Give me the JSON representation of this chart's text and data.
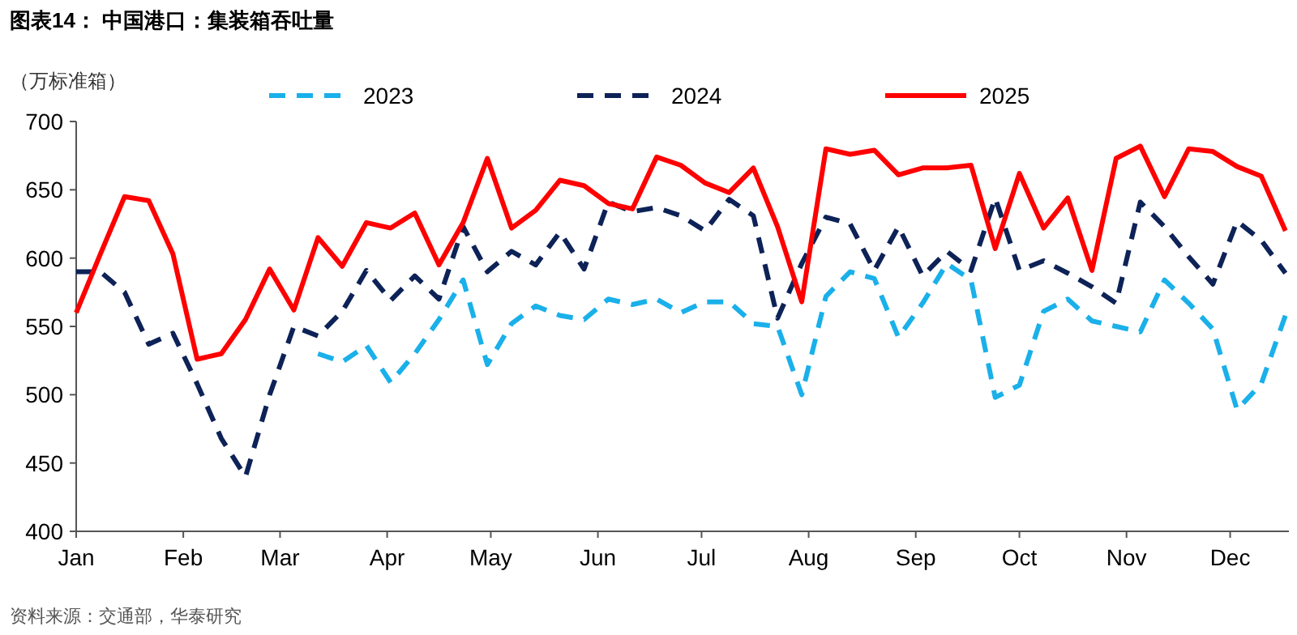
{
  "chart_data": {
    "type": "line",
    "title": "图表14：  中国港口：集装箱吞吐量",
    "ylabel": "（万标准箱）",
    "annotations": [
      "资料来源：交通部，华泰研究"
    ],
    "x": [
      "--01-01",
      "--01-08",
      "--01-15",
      "--01-22",
      "--01-29",
      "--02-05",
      "--02-12",
      "--02-19",
      "--02-26",
      "--03-05",
      "--03-12",
      "--03-19",
      "--03-26",
      "--04-02",
      "--04-09",
      "--04-16",
      "--04-23",
      "--04-30",
      "--05-07",
      "--05-14",
      "--05-21",
      "--05-28",
      "--06-04",
      "--06-11",
      "--06-18",
      "--06-25",
      "--07-02",
      "--07-09",
      "--07-16",
      "--07-23",
      "--07-30",
      "--08-06",
      "--08-13",
      "--08-20",
      "--08-27",
      "--09-03",
      "--09-10",
      "--09-17",
      "--09-24",
      "--10-01",
      "--10-08",
      "--10-15",
      "--10-22",
      "--10-29",
      "--11-05",
      "--11-12",
      "--11-19",
      "--11-26",
      "--12-03",
      "--12-10",
      "--12-17"
    ],
    "xlim": [
      "--01-01",
      "--12-18"
    ],
    "xticks": [
      {
        "value": "--01-01",
        "label": "Jan"
      },
      {
        "value": "--02-01",
        "label": "Feb"
      },
      {
        "value": "--03-01",
        "label": "Mar"
      },
      {
        "value": "--04-01",
        "label": "Apr"
      },
      {
        "value": "--05-01",
        "label": "May"
      },
      {
        "value": "--06-01",
        "label": "Jun"
      },
      {
        "value": "--07-01",
        "label": "Jul"
      },
      {
        "value": "--08-01",
        "label": "Aug"
      },
      {
        "value": "--09-01",
        "label": "Sep"
      },
      {
        "value": "--10-01",
        "label": "Oct"
      },
      {
        "value": "--11-01",
        "label": "Nov"
      },
      {
        "value": "--12-01",
        "label": "Dec"
      }
    ],
    "ylim": [
      400,
      700
    ],
    "yticks": [
      400,
      450,
      500,
      550,
      600,
      650,
      700
    ],
    "grid": false,
    "legend": "top",
    "marker": "none",
    "series": [
      {
        "name": "2023",
        "color": "#1ab0ea",
        "line_style": "dashed",
        "values": [
          null,
          null,
          null,
          null,
          null,
          null,
          null,
          null,
          null,
          null,
          530,
          524,
          536,
          509,
          530,
          555,
          584,
          522,
          552,
          565,
          558,
          555,
          570,
          566,
          570,
          560,
          568,
          568,
          552,
          550,
          500,
          572,
          590,
          585,
          542,
          567,
          596,
          584,
          498,
          507,
          561,
          570,
          554,
          550,
          546,
          584,
          567,
          548,
          489,
          508,
          558
        ]
      },
      {
        "name": "2024",
        "color": "#0d2257",
        "line_style": "dashed",
        "values": [
          590,
          590,
          575,
          537,
          545,
          508,
          468,
          440,
          500,
          550,
          543,
          561,
          591,
          569,
          587,
          570,
          623,
          590,
          605,
          595,
          619,
          592,
          641,
          634,
          637,
          631,
          620,
          643,
          631,
          556,
          596,
          630,
          625,
          591,
          623,
          587,
          605,
          591,
          644,
          591,
          598,
          589,
          579,
          567,
          641,
          623,
          601,
          581,
          627,
          613,
          589
        ]
      },
      {
        "name": "2025",
        "color": "#ff0000",
        "line_style": "solid",
        "values": [
          560,
          603,
          645,
          642,
          603,
          526,
          530,
          555,
          592,
          562,
          615,
          594,
          626,
          622,
          633,
          595,
          626,
          673,
          622,
          635,
          657,
          653,
          640,
          636,
          674,
          668,
          655,
          648,
          666,
          623,
          568,
          680,
          676,
          679,
          661,
          666,
          666,
          668,
          607,
          662,
          622,
          644,
          591,
          673,
          682,
          645,
          680,
          678,
          667,
          660,
          620
        ]
      }
    ]
  }
}
